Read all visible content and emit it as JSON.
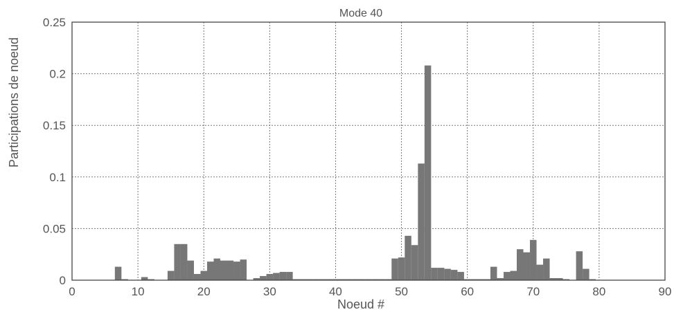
{
  "chart_data": {
    "type": "bar",
    "title": "Mode 40",
    "xlabel": "Noeud #",
    "ylabel": "Participations de noeud",
    "xlim": [
      0,
      90
    ],
    "ylim": [
      0,
      0.25
    ],
    "x_ticks": [
      0,
      10,
      20,
      30,
      40,
      50,
      60,
      70,
      80,
      90
    ],
    "y_ticks": [
      0,
      0.05,
      0.1,
      0.15,
      0.2,
      0.25
    ],
    "x_tick_labels": [
      "0",
      "10",
      "20",
      "30",
      "40",
      "50",
      "60",
      "70",
      "80",
      "90"
    ],
    "y_tick_labels": [
      "0",
      "0.05",
      "0.1",
      "0.15",
      "0.2",
      "0.25"
    ],
    "grid": true,
    "bar_color": "#777777",
    "x": [
      1,
      2,
      3,
      4,
      5,
      6,
      7,
      8,
      9,
      10,
      11,
      12,
      13,
      14,
      15,
      16,
      17,
      18,
      19,
      20,
      21,
      22,
      23,
      24,
      25,
      26,
      27,
      28,
      29,
      30,
      31,
      32,
      33,
      34,
      35,
      36,
      37,
      38,
      39,
      40,
      41,
      42,
      43,
      44,
      45,
      46,
      47,
      48,
      49,
      50,
      51,
      52,
      53,
      54,
      55,
      56,
      57,
      58,
      59,
      60,
      61,
      62,
      63,
      64,
      65,
      66,
      67,
      68,
      69,
      70,
      71,
      72,
      73,
      74,
      75,
      76,
      77,
      78,
      79,
      80,
      81,
      82,
      83,
      84,
      85,
      86,
      87,
      88,
      89,
      90
    ],
    "values": [
      0,
      0,
      0,
      0,
      0,
      0,
      0.013,
      0.001,
      0,
      0,
      0.003,
      0.001,
      0,
      0,
      0.009,
      0.035,
      0.035,
      0.019,
      0.006,
      0.009,
      0.018,
      0.021,
      0.019,
      0.019,
      0.018,
      0.02,
      0,
      0.002,
      0.004,
      0.006,
      0.007,
      0.008,
      0.008,
      0.001,
      0.001,
      0.001,
      0.001,
      0.001,
      0.001,
      0.001,
      0.001,
      0.001,
      0.001,
      0.001,
      0.001,
      0.001,
      0.001,
      0.001,
      0.021,
      0.022,
      0.043,
      0.034,
      0.113,
      0.208,
      0.012,
      0.012,
      0.011,
      0.01,
      0.008,
      0.001,
      0.001,
      0.001,
      0.001,
      0.013,
      0.002,
      0.008,
      0.009,
      0.03,
      0.027,
      0.039,
      0.015,
      0.021,
      0.002,
      0.002,
      0.001,
      0,
      0.028,
      0.011,
      0.001,
      0,
      0,
      0,
      0,
      0,
      0,
      0,
      0,
      0,
      0,
      0
    ]
  }
}
